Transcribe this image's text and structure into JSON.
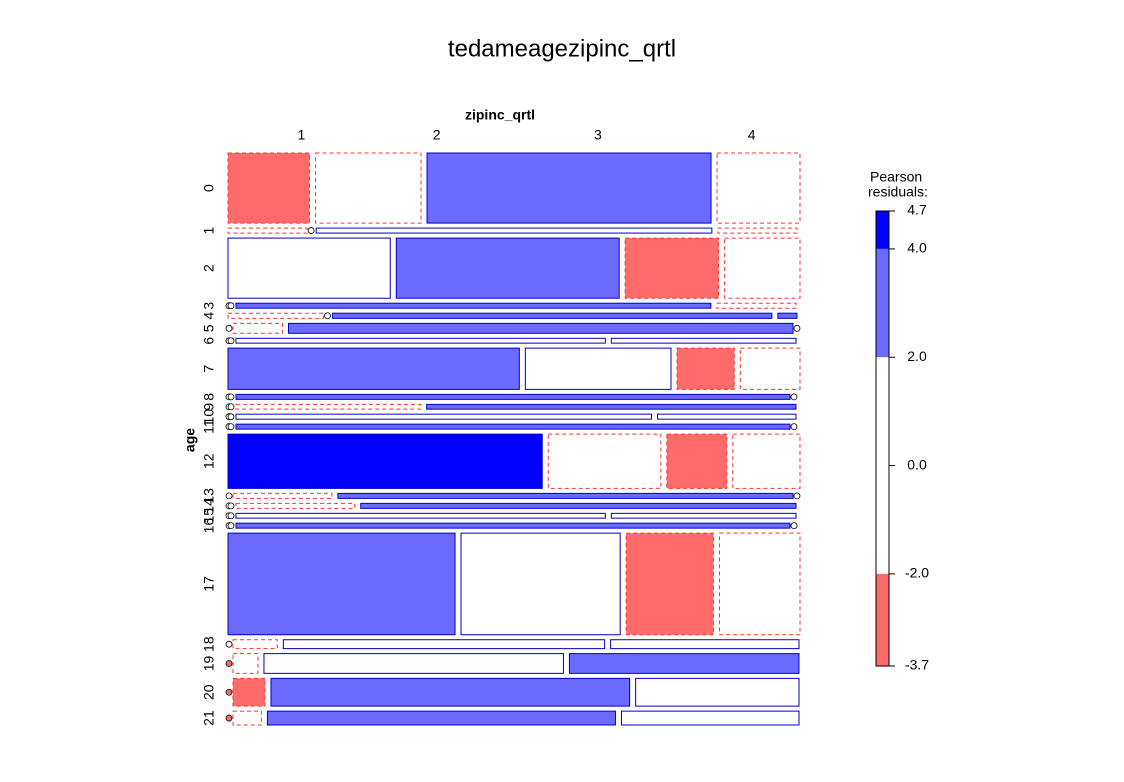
{
  "chart_data": {
    "type": "mosaic",
    "title": "tedameagezipinc_qrtl",
    "x_label": "zipinc_qrtl",
    "y_label": "age",
    "columns": [
      "1",
      "2",
      "3",
      "4"
    ],
    "rows": [
      {
        "label": "0",
        "counts": [
          58,
          75,
          202,
          59
        ],
        "residuals": [
          -3,
          -1,
          3,
          -1
        ]
      },
      {
        "label": "1",
        "counts": [
          4,
          0,
          20,
          4
        ],
        "residuals": [
          -1,
          -0.5,
          1,
          -1
        ]
      },
      {
        "label": "2",
        "counts": [
          99,
          136,
          57,
          46
        ],
        "residuals": [
          1,
          3,
          -3,
          -1
        ]
      },
      {
        "label": "3",
        "counts": [
          0,
          0,
          24,
          4
        ],
        "residuals": [
          -0.5,
          -0.5,
          2.5,
          -1
        ]
      },
      {
        "label": "4",
        "counts": [
          5,
          0,
          23,
          1
        ],
        "residuals": [
          -1,
          -0.5,
          2.5,
          2.5
        ]
      },
      {
        "label": "5",
        "counts": [
          0,
          5,
          51,
          0
        ],
        "residuals": [
          -0.5,
          -1,
          2.5,
          -0.5
        ]
      },
      {
        "label": "6",
        "counts": [
          0,
          0,
          18,
          9
        ],
        "residuals": [
          -0.5,
          -0.5,
          1,
          1
        ]
      },
      {
        "label": "7",
        "counts": [
          122,
          61,
          24,
          25
        ],
        "residuals": [
          3,
          1,
          -3,
          -1
        ]
      },
      {
        "label": "8",
        "counts": [
          0,
          0,
          28,
          0
        ],
        "residuals": [
          -0.5,
          -0.5,
          2.5,
          -0.5
        ]
      },
      {
        "label": "9",
        "counts": [
          0,
          0,
          9,
          18
        ],
        "residuals": [
          -0.5,
          -0.5,
          -1,
          2.5
        ]
      },
      {
        "label": "10",
        "counts": [
          0,
          0,
          21,
          7
        ],
        "residuals": [
          -0.5,
          -0.5,
          1,
          1
        ]
      },
      {
        "label": "11",
        "counts": [
          0,
          0,
          28,
          0
        ],
        "residuals": [
          -0.5,
          -0.5,
          2.5,
          -0.5
        ]
      },
      {
        "label": "12",
        "counts": [
          173,
          62,
          33,
          37
        ],
        "residuals": [
          4.5,
          -1,
          -3,
          -1
        ]
      },
      {
        "label": "13",
        "counts": [
          0,
          5,
          23,
          0
        ],
        "residuals": [
          -0.5,
          -1,
          2.5,
          -0.5
        ]
      },
      {
        "label": "14",
        "counts": [
          0,
          0,
          6,
          22
        ],
        "residuals": [
          -0.5,
          -0.5,
          -1,
          2.5
        ]
      },
      {
        "label": "15",
        "counts": [
          0,
          0,
          18,
          9
        ],
        "residuals": [
          -0.5,
          -0.5,
          1,
          1
        ]
      },
      {
        "label": "16",
        "counts": [
          0,
          0,
          28,
          0
        ],
        "residuals": [
          -0.5,
          -0.5,
          2.5,
          -0.5
        ]
      },
      {
        "label": "17",
        "counts": [
          234,
          164,
          90,
          83
        ],
        "residuals": [
          3,
          1,
          -3,
          -1
        ]
      },
      {
        "label": "18",
        "counts": [
          0,
          4,
          29,
          17
        ],
        "residuals": [
          -0.5,
          -1,
          1,
          1
        ]
      },
      {
        "label": "19",
        "counts": [
          0,
          5,
          60,
          46
        ],
        "residuals": [
          -2.5,
          -1,
          1,
          3
        ]
      },
      {
        "label": "20",
        "counts": [
          0,
          9,
          101,
          46
        ],
        "residuals": [
          -2.5,
          -3,
          3,
          1
        ]
      },
      {
        "label": "21",
        "counts": [
          0,
          4,
          49,
          25
        ],
        "residuals": [
          -2.5,
          -1,
          3,
          1
        ]
      }
    ],
    "legend_title": [
      "Pearson",
      "residuals:"
    ],
    "legend_lim": [
      -3.7,
      4.7
    ],
    "legend_ticks": [
      4.7,
      {
        "value": 4,
        "label": "4.0"
      },
      {
        "value": 2,
        "label": "2.0"
      },
      {
        "value": 0,
        "label": "0.0"
      },
      {
        "value": -2,
        "label": "-2.0"
      },
      -3.7
    ],
    "band_colors": [
      "#0000ff",
      "#6b6bff",
      "#ffffff",
      "#ffffff",
      "#ff6b6b"
    ],
    "positive_border": "#0000cc",
    "negative_border": "#ff3333"
  }
}
